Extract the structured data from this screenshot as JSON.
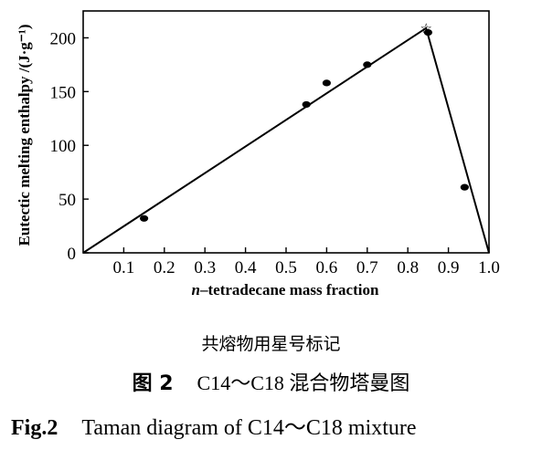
{
  "chart_data": {
    "type": "line",
    "x_axis_title_italic": "n",
    "x_axis_title_rest": "–tetradecane mass fraction",
    "y_axis_title": "Eutectic melting enthalpy /(J·g⁻¹)",
    "xlim": [
      0,
      1.0
    ],
    "ylim": [
      0,
      225
    ],
    "x_ticks": [
      "0.1",
      "0.2",
      "0.3",
      "0.4",
      "0.5",
      "0.6",
      "0.7",
      "0.8",
      "0.9",
      "1.0"
    ],
    "y_ticks": [
      "0",
      "50",
      "100",
      "150",
      "200"
    ],
    "series": [
      {
        "kind": "scatter",
        "x": [
          0.15,
          0.55,
          0.6,
          0.7,
          0.85,
          0.94
        ],
        "y": [
          32,
          138,
          158,
          175,
          205,
          61
        ]
      },
      {
        "kind": "line",
        "x": [
          0,
          0.845,
          1.0
        ],
        "y": [
          0,
          209,
          0
        ]
      }
    ],
    "eutectic_marker": {
      "x": 0.845,
      "y": 209,
      "symbol": "☆"
    }
  },
  "captions": {
    "note": "共熔物用星号标记",
    "cn_fig_num": "图 2",
    "cn_text": "C14～C18 混合物塔曼图",
    "en_fig_num": "Fig.2",
    "en_text": "Taman diagram of C14～C18 mixture"
  }
}
